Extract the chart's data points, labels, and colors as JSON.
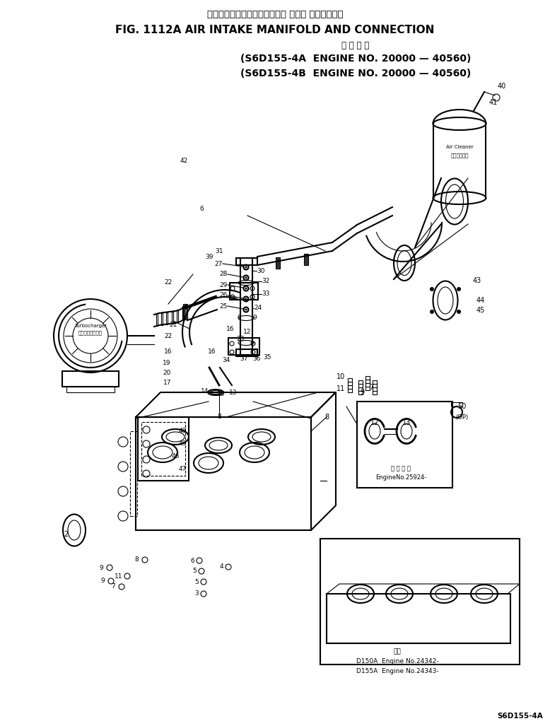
{
  "title_japanese": "エアーインテークマニホールド および コネクション",
  "title_english": "FIG. 1112A AIR INTAKE MANIFOLD AND CONNECTION",
  "subtitle_japanese": "適 用 号 機",
  "subtitle_line1": "(S6D155-4A  ENGINE NO. 20000 — 40560)",
  "subtitle_line2": "(S6D155-4B  ENGINE NO. 20000 — 40560)",
  "bottom_right_label": "S6D155-4A",
  "inset_label1": "適 用 号 機",
  "inset_label2": "EngineNo.25924-",
  "inset_bottom_label1": "D150A  Engine No.24342-",
  "inset_bottom_label2": "D155A  Engine No.24343-",
  "inset_bottom_title": "備考",
  "bg_color": "#ffffff",
  "text_color": "#000000",
  "diagram_color": "#000000",
  "lw_main": 1.5,
  "lw_pipe": 2.0,
  "lw_thin": 0.8
}
